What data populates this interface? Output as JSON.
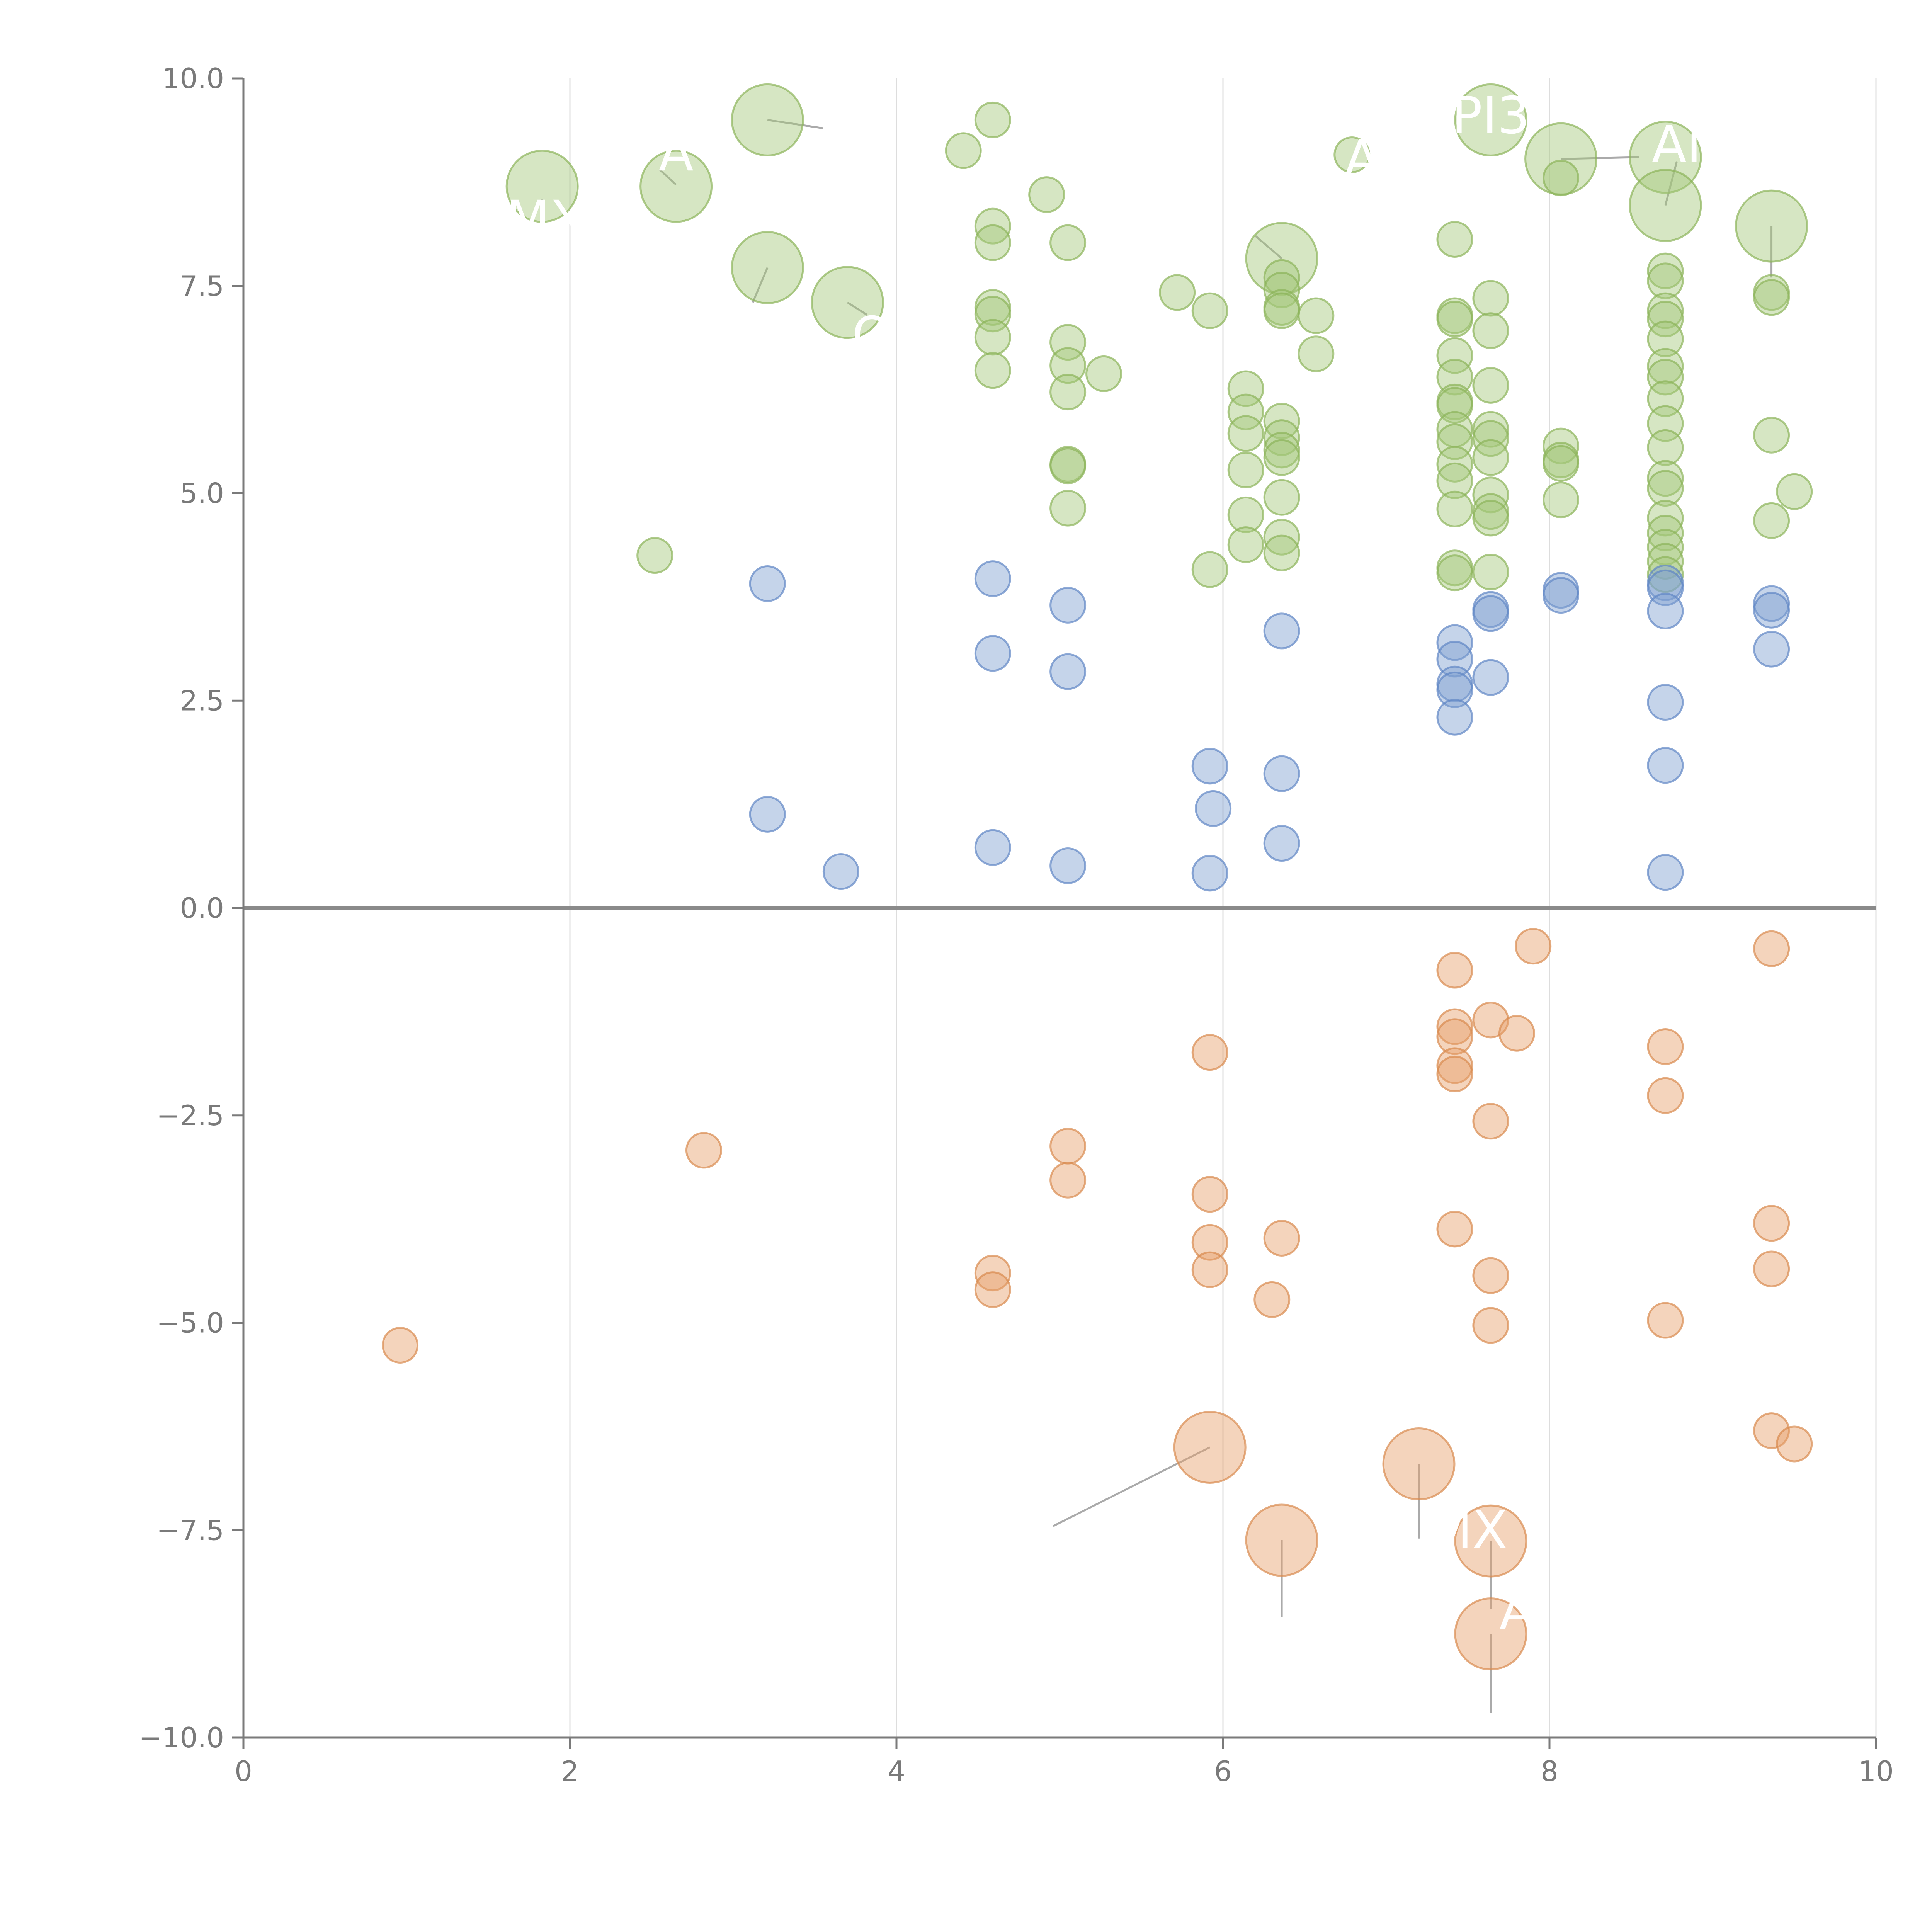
{
  "chart_data": {
    "type": "scatter",
    "title": "",
    "xlabel": "",
    "ylabel": "",
    "xlim": [
      0,
      10
    ],
    "ylim": [
      -10,
      10
    ],
    "x_ticks": [
      "0",
      "2",
      "4",
      "6",
      "8",
      "10"
    ],
    "x_tick_values": [
      0,
      2,
      4,
      6,
      8,
      10
    ],
    "y_ticks": [
      "10.0",
      "7.5",
      "5.0",
      "2.5",
      "0.0",
      "−2.5",
      "−5.0",
      "−7.5",
      "−10.0"
    ],
    "y_tick_values": [
      10,
      7.5,
      5,
      2.5,
      0,
      -2.5,
      -5,
      -7.5,
      -10
    ],
    "vertical_gridlines": true,
    "zero_line": true,
    "colors": {
      "green_fill": "#a5c77a",
      "green_stroke": "#8cb45a",
      "blue_fill": "#7f9fd1",
      "blue_stroke": "#5f86c4",
      "orange_fill": "#e7a06a",
      "orange_stroke": "#d98a4e",
      "axis": "#7a7a7a",
      "grid": "#dddddd",
      "zero": "#8a8a8a",
      "leader": "#aaaaaa"
    },
    "series": [
      {
        "name": "green",
        "color_key": "green",
        "points": [
          {
            "x": 1.83,
            "y": 8.7,
            "size": "large"
          },
          {
            "x": 2.65,
            "y": 8.7,
            "size": "large"
          },
          {
            "x": 3.21,
            "y": 9.5,
            "size": "large"
          },
          {
            "x": 3.21,
            "y": 7.72,
            "size": "large"
          },
          {
            "x": 3.7,
            "y": 7.3,
            "size": "large"
          },
          {
            "x": 6.36,
            "y": 7.83,
            "size": "large"
          },
          {
            "x": 7.64,
            "y": 9.5,
            "size": "large"
          },
          {
            "x": 8.07,
            "y": 9.03,
            "size": "large"
          },
          {
            "x": 8.71,
            "y": 9.05,
            "size": "large"
          },
          {
            "x": 8.71,
            "y": 8.47,
            "size": "large"
          },
          {
            "x": 9.36,
            "y": 8.22,
            "size": "large"
          },
          {
            "x": 2.52,
            "y": 4.25
          },
          {
            "x": 4.41,
            "y": 9.13
          },
          {
            "x": 4.59,
            "y": 9.5
          },
          {
            "x": 4.59,
            "y": 8.22
          },
          {
            "x": 4.59,
            "y": 8.02
          },
          {
            "x": 4.59,
            "y": 7.24
          },
          {
            "x": 4.59,
            "y": 7.16
          },
          {
            "x": 4.59,
            "y": 6.88
          },
          {
            "x": 4.59,
            "y": 6.48
          },
          {
            "x": 4.92,
            "y": 8.6
          },
          {
            "x": 5.05,
            "y": 8.02
          },
          {
            "x": 5.05,
            "y": 6.82
          },
          {
            "x": 5.05,
            "y": 6.54
          },
          {
            "x": 5.05,
            "y": 6.22
          },
          {
            "x": 5.05,
            "y": 5.35
          },
          {
            "x": 5.05,
            "y": 5.33
          },
          {
            "x": 5.05,
            "y": 4.82
          },
          {
            "x": 5.27,
            "y": 6.44
          },
          {
            "x": 5.72,
            "y": 7.42
          },
          {
            "x": 5.92,
            "y": 7.2
          },
          {
            "x": 5.92,
            "y": 4.08
          },
          {
            "x": 6.14,
            "y": 6.26
          },
          {
            "x": 6.14,
            "y": 5.98
          },
          {
            "x": 6.14,
            "y": 5.72
          },
          {
            "x": 6.14,
            "y": 5.28
          },
          {
            "x": 6.14,
            "y": 4.74
          },
          {
            "x": 6.14,
            "y": 4.38
          },
          {
            "x": 6.36,
            "y": 7.6
          },
          {
            "x": 6.36,
            "y": 7.45
          },
          {
            "x": 6.36,
            "y": 7.24
          },
          {
            "x": 6.36,
            "y": 7.2
          },
          {
            "x": 6.36,
            "y": 5.87
          },
          {
            "x": 6.36,
            "y": 5.67
          },
          {
            "x": 6.36,
            "y": 5.52
          },
          {
            "x": 6.36,
            "y": 5.43
          },
          {
            "x": 6.36,
            "y": 4.95
          },
          {
            "x": 6.36,
            "y": 4.47
          },
          {
            "x": 6.36,
            "y": 4.28
          },
          {
            "x": 6.57,
            "y": 7.14
          },
          {
            "x": 6.57,
            "y": 6.68
          },
          {
            "x": 6.79,
            "y": 9.08
          },
          {
            "x": 7.42,
            "y": 8.06
          },
          {
            "x": 7.42,
            "y": 7.14
          },
          {
            "x": 7.42,
            "y": 7.1
          },
          {
            "x": 7.42,
            "y": 6.66
          },
          {
            "x": 7.42,
            "y": 6.4
          },
          {
            "x": 7.42,
            "y": 6.1
          },
          {
            "x": 7.42,
            "y": 6.06
          },
          {
            "x": 7.42,
            "y": 5.77
          },
          {
            "x": 7.42,
            "y": 5.62
          },
          {
            "x": 7.42,
            "y": 5.35
          },
          {
            "x": 7.42,
            "y": 5.15
          },
          {
            "x": 7.42,
            "y": 4.81
          },
          {
            "x": 7.42,
            "y": 4.1
          },
          {
            "x": 7.42,
            "y": 4.04
          },
          {
            "x": 7.64,
            "y": 7.35
          },
          {
            "x": 7.64,
            "y": 6.96
          },
          {
            "x": 7.64,
            "y": 6.3
          },
          {
            "x": 7.64,
            "y": 5.77
          },
          {
            "x": 7.64,
            "y": 5.66
          },
          {
            "x": 7.64,
            "y": 5.43
          },
          {
            "x": 7.64,
            "y": 4.98
          },
          {
            "x": 7.64,
            "y": 4.78
          },
          {
            "x": 7.64,
            "y": 4.7
          },
          {
            "x": 7.64,
            "y": 4.05
          },
          {
            "x": 8.07,
            "y": 8.8
          },
          {
            "x": 8.07,
            "y": 5.57
          },
          {
            "x": 8.07,
            "y": 5.4
          },
          {
            "x": 8.07,
            "y": 5.36
          },
          {
            "x": 8.07,
            "y": 4.92
          },
          {
            "x": 8.71,
            "y": 7.68
          },
          {
            "x": 8.71,
            "y": 7.56
          },
          {
            "x": 8.71,
            "y": 7.2
          },
          {
            "x": 8.71,
            "y": 7.1
          },
          {
            "x": 8.71,
            "y": 6.86
          },
          {
            "x": 8.71,
            "y": 6.53
          },
          {
            "x": 8.71,
            "y": 6.4
          },
          {
            "x": 8.71,
            "y": 6.14
          },
          {
            "x": 8.71,
            "y": 5.84
          },
          {
            "x": 8.71,
            "y": 5.55
          },
          {
            "x": 8.71,
            "y": 5.18
          },
          {
            "x": 8.71,
            "y": 5.06
          },
          {
            "x": 8.71,
            "y": 4.7
          },
          {
            "x": 8.71,
            "y": 4.52
          },
          {
            "x": 8.71,
            "y": 4.35
          },
          {
            "x": 8.71,
            "y": 4.18
          },
          {
            "x": 8.71,
            "y": 4.02
          },
          {
            "x": 9.36,
            "y": 7.42
          },
          {
            "x": 9.36,
            "y": 7.36
          },
          {
            "x": 9.36,
            "y": 5.7
          },
          {
            "x": 9.36,
            "y": 4.67
          },
          {
            "x": 9.5,
            "y": 5.02
          }
        ]
      },
      {
        "name": "blue",
        "color_key": "blue",
        "points": [
          {
            "x": 3.21,
            "y": 3.91
          },
          {
            "x": 3.21,
            "y": 1.13
          },
          {
            "x": 3.66,
            "y": 0.44
          },
          {
            "x": 4.59,
            "y": 3.97
          },
          {
            "x": 4.59,
            "y": 3.07
          },
          {
            "x": 4.59,
            "y": 0.73
          },
          {
            "x": 5.05,
            "y": 3.65
          },
          {
            "x": 5.05,
            "y": 2.85
          },
          {
            "x": 5.05,
            "y": 0.51
          },
          {
            "x": 5.92,
            "y": 1.71
          },
          {
            "x": 5.94,
            "y": 1.2
          },
          {
            "x": 5.92,
            "y": 0.42
          },
          {
            "x": 6.36,
            "y": 3.34
          },
          {
            "x": 6.36,
            "y": 1.62
          },
          {
            "x": 6.36,
            "y": 0.78
          },
          {
            "x": 7.42,
            "y": 3.2
          },
          {
            "x": 7.42,
            "y": 3.0
          },
          {
            "x": 7.42,
            "y": 2.7
          },
          {
            "x": 7.42,
            "y": 2.63
          },
          {
            "x": 7.42,
            "y": 2.3
          },
          {
            "x": 7.64,
            "y": 3.6
          },
          {
            "x": 7.64,
            "y": 3.55
          },
          {
            "x": 7.64,
            "y": 2.78
          },
          {
            "x": 8.07,
            "y": 3.83
          },
          {
            "x": 8.07,
            "y": 3.77
          },
          {
            "x": 8.71,
            "y": 3.92
          },
          {
            "x": 8.71,
            "y": 3.86
          },
          {
            "x": 8.71,
            "y": 3.58
          },
          {
            "x": 8.71,
            "y": 2.48
          },
          {
            "x": 8.71,
            "y": 1.72
          },
          {
            "x": 8.71,
            "y": 0.43
          },
          {
            "x": 9.36,
            "y": 3.67
          },
          {
            "x": 9.36,
            "y": 3.59
          },
          {
            "x": 9.36,
            "y": 3.12
          }
        ]
      },
      {
        "name": "orange",
        "color_key": "orange",
        "points": [
          {
            "x": 5.92,
            "y": -6.5,
            "size": "large"
          },
          {
            "x": 6.36,
            "y": -7.62,
            "size": "large"
          },
          {
            "x": 7.2,
            "y": -6.7,
            "size": "large"
          },
          {
            "x": 7.64,
            "y": -7.63,
            "size": "large"
          },
          {
            "x": 7.64,
            "y": -8.75,
            "size": "large"
          },
          {
            "x": 0.96,
            "y": -5.27
          },
          {
            "x": 2.82,
            "y": -2.92
          },
          {
            "x": 4.59,
            "y": -4.4
          },
          {
            "x": 4.59,
            "y": -4.6
          },
          {
            "x": 5.05,
            "y": -2.87
          },
          {
            "x": 5.05,
            "y": -3.28
          },
          {
            "x": 5.92,
            "y": -1.74
          },
          {
            "x": 5.92,
            "y": -3.45
          },
          {
            "x": 5.92,
            "y": -4.03
          },
          {
            "x": 5.92,
            "y": -4.36
          },
          {
            "x": 6.3,
            "y": -4.72
          },
          {
            "x": 6.36,
            "y": -3.98
          },
          {
            "x": 7.42,
            "y": -0.75
          },
          {
            "x": 7.42,
            "y": -1.43
          },
          {
            "x": 7.42,
            "y": -1.55
          },
          {
            "x": 7.42,
            "y": -1.9
          },
          {
            "x": 7.42,
            "y": -2.0
          },
          {
            "x": 7.42,
            "y": -3.87
          },
          {
            "x": 7.64,
            "y": -1.35
          },
          {
            "x": 7.64,
            "y": -2.57
          },
          {
            "x": 7.64,
            "y": -4.43
          },
          {
            "x": 7.64,
            "y": -5.03
          },
          {
            "x": 7.8,
            "y": -1.51
          },
          {
            "x": 7.9,
            "y": -0.46
          },
          {
            "x": 8.71,
            "y": -1.67
          },
          {
            "x": 8.71,
            "y": -2.26
          },
          {
            "x": 8.71,
            "y": -4.97
          },
          {
            "x": 9.36,
            "y": -0.49
          },
          {
            "x": 9.36,
            "y": -3.8
          },
          {
            "x": 9.36,
            "y": -4.35
          },
          {
            "x": 9.36,
            "y": -6.3
          },
          {
            "x": 9.5,
            "y": -6.46
          }
        ]
      }
    ],
    "annotations": [
      {
        "text": "MX",
        "x": 1.85,
        "y": 8.3
      },
      {
        "text": "A",
        "x": 2.65,
        "y": 9.1
      },
      {
        "text": "Q",
        "x": 3.85,
        "y": 6.9
      },
      {
        "text": "A",
        "x": 6.85,
        "y": 9.03
      },
      {
        "text": "PI3",
        "x": 7.64,
        "y": 9.55
      },
      {
        "text": "AN",
        "x": 8.85,
        "y": 9.2
      },
      {
        "text": "MX",
        "x": 7.5,
        "y": -7.5
      },
      {
        "text": "A",
        "x": 7.8,
        "y": -8.48
      }
    ],
    "leaders": [
      {
        "x1": 1.83,
        "y1": 8.55,
        "x2": 1.83,
        "y2": 8.35
      },
      {
        "x1": 2.65,
        "y1": 8.72,
        "x2": 2.55,
        "y2": 8.9
      },
      {
        "x1": 3.21,
        "y1": 9.5,
        "x2": 3.55,
        "y2": 9.4
      },
      {
        "x1": 3.21,
        "y1": 7.72,
        "x2": 3.12,
        "y2": 7.3
      },
      {
        "x1": 3.7,
        "y1": 7.3,
        "x2": 3.82,
        "y2": 7.15
      },
      {
        "x1": 6.36,
        "y1": 7.83,
        "x2": 6.2,
        "y2": 8.1
      },
      {
        "x1": 8.07,
        "y1": 9.03,
        "x2": 8.55,
        "y2": 9.05
      },
      {
        "x1": 8.71,
        "y1": 8.47,
        "x2": 8.78,
        "y2": 9.0
      },
      {
        "x1": 9.36,
        "y1": 8.22,
        "x2": 9.36,
        "y2": 7.6
      },
      {
        "x1": 5.92,
        "y1": -6.5,
        "x2": 4.96,
        "y2": -7.45
      },
      {
        "x1": 7.2,
        "y1": -6.7,
        "x2": 7.2,
        "y2": -7.6
      },
      {
        "x1": 6.36,
        "y1": -7.62,
        "x2": 6.36,
        "y2": -8.55
      },
      {
        "x1": 7.64,
        "y1": -7.63,
        "x2": 7.64,
        "y2": -8.45
      },
      {
        "x1": 7.64,
        "y1": -8.75,
        "x2": 7.64,
        "y2": -9.7
      }
    ]
  }
}
